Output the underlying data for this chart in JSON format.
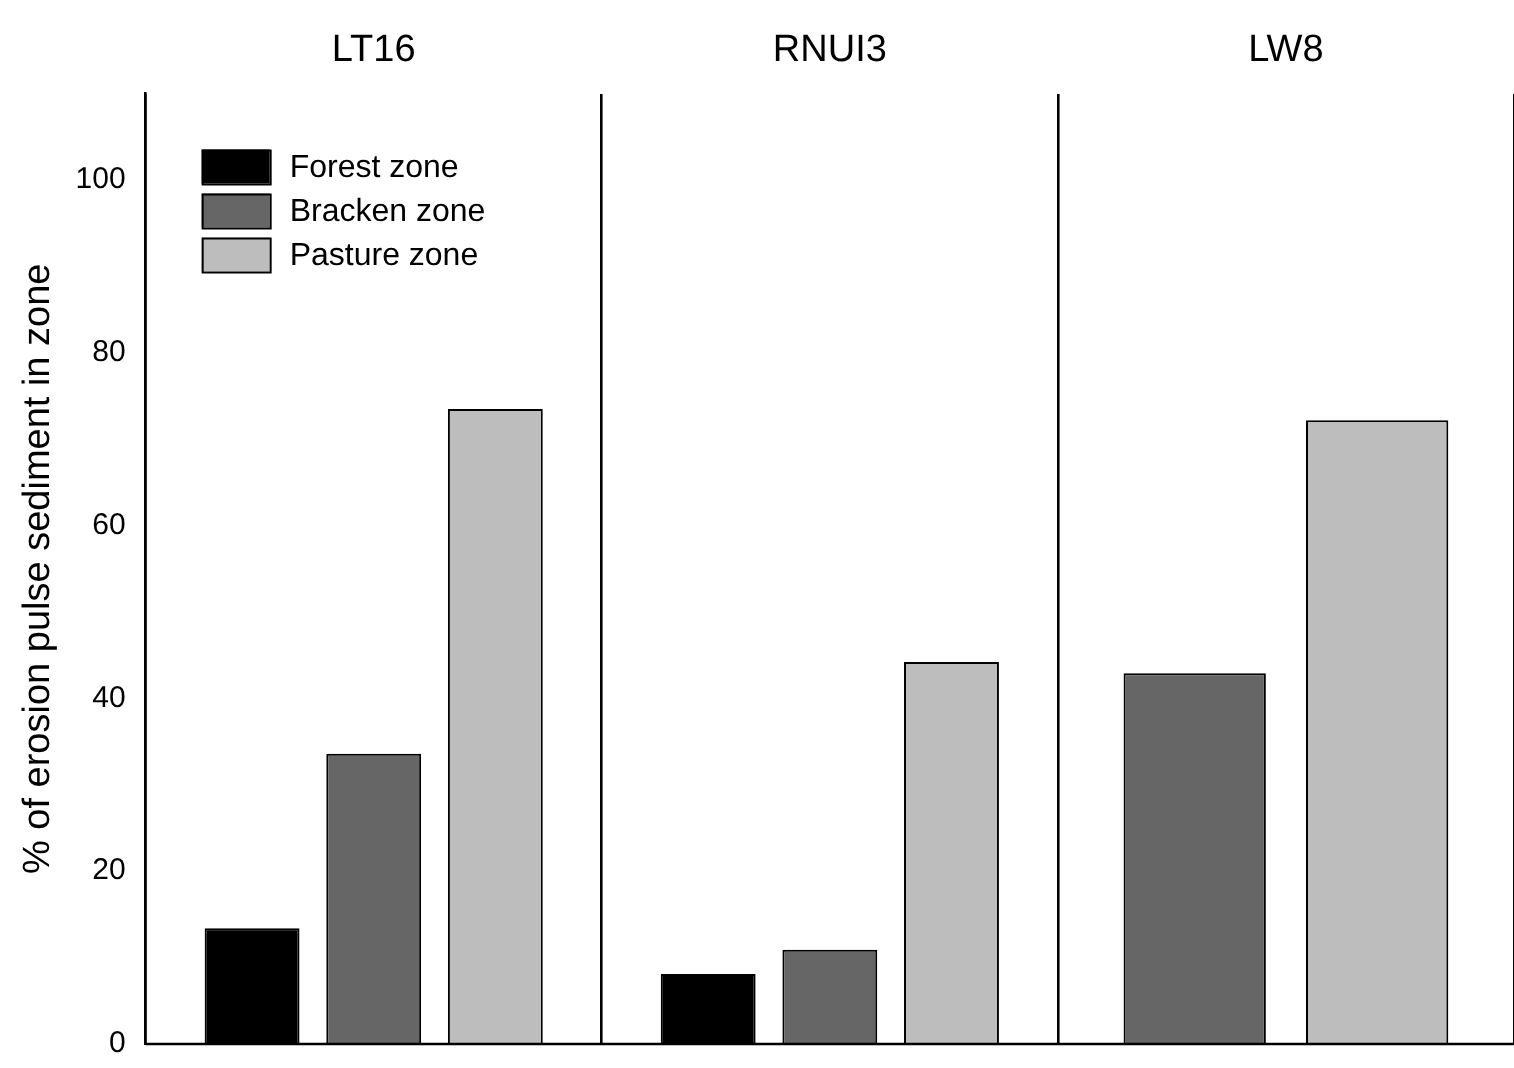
{
  "chart_data": {
    "type": "bar",
    "ylabel": "% of erosion pulse sediment in zone",
    "categories": [
      "LT16",
      "RNUI3",
      "LW8"
    ],
    "series": [
      {
        "name": "Forest zone",
        "color": "#000000",
        "values": [
          13.4,
          8.1,
          null
        ]
      },
      {
        "name": "Bracken zone",
        "color": "#666666",
        "values": [
          33.6,
          10.9,
          42.9
        ]
      },
      {
        "name": "Pasture zone",
        "color": "#bdbdbd",
        "values": [
          73.5,
          44.2,
          72.2
        ]
      }
    ],
    "ylim": [
      0,
      110
    ],
    "yticks": [
      0,
      20,
      40,
      60,
      80,
      100
    ],
    "grid": "x",
    "legend": "top left"
  }
}
